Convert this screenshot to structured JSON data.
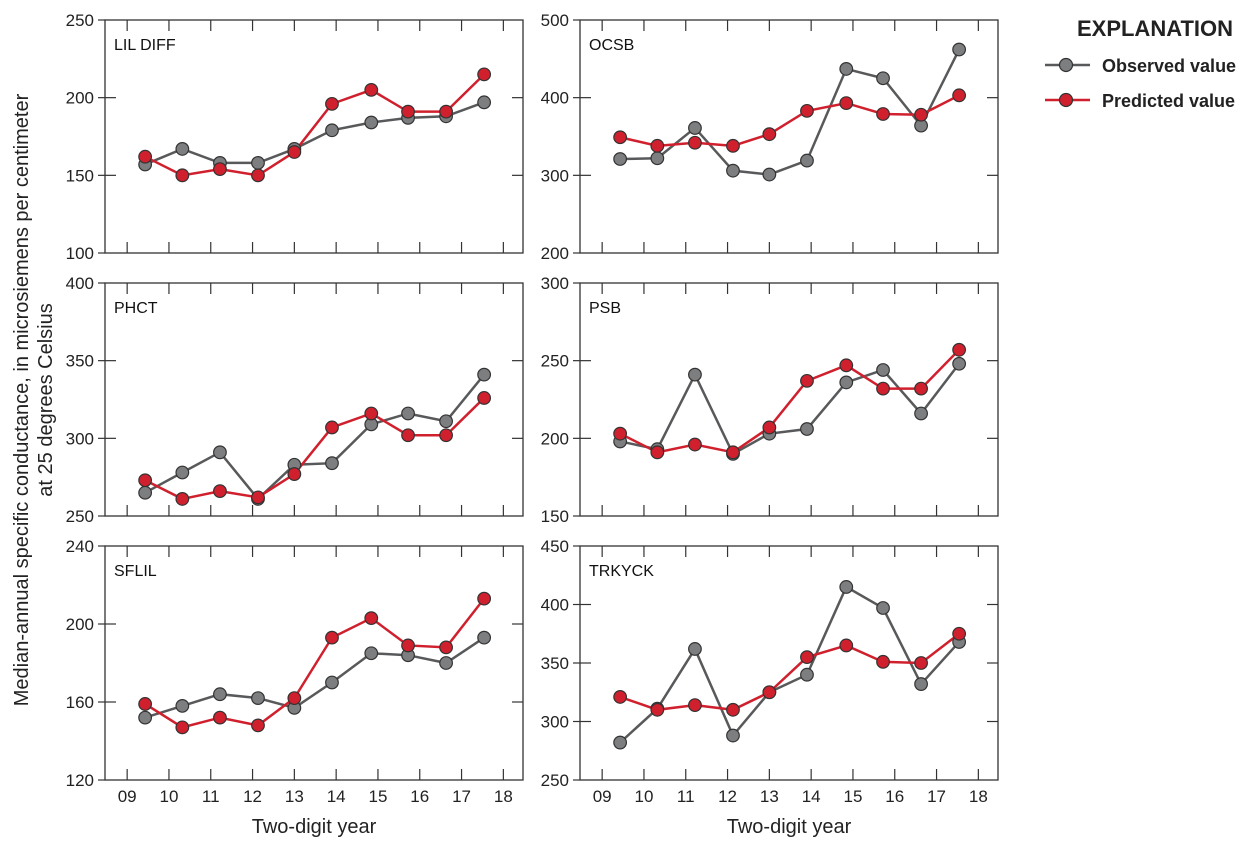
{
  "chart_data": {
    "type": "line",
    "ylabel": [
      "Median-annual specific conductance, in microsiemens per centimeter",
      "at 25 degrees Celsius"
    ],
    "xlabel": "Two-digit year",
    "x_ticks": [
      "09",
      "10",
      "11",
      "12",
      "13",
      "14",
      "15",
      "16",
      "17",
      "18"
    ],
    "x_values": [
      9.43,
      10.32,
      11.22,
      12.13,
      13.0,
      13.9,
      14.84,
      15.72,
      16.63,
      17.54
    ],
    "legend": {
      "title": "EXPLANATION",
      "placement": "top-right",
      "entries": [
        "Observed value",
        "Predicted value"
      ]
    },
    "colors": {
      "observed_fill": "#7d7e80",
      "observed_line": "#58595b",
      "predicted": "#d0202e"
    },
    "panels": [
      {
        "name": "LIL DIFF",
        "ylim": [
          100,
          250
        ],
        "yticks": [
          100,
          150,
          200,
          250
        ],
        "observed": [
          157,
          167,
          158,
          158,
          167,
          179,
          184,
          187,
          188,
          197
        ],
        "predicted": [
          162,
          150,
          154,
          150,
          165,
          196,
          205,
          191,
          191,
          215
        ]
      },
      {
        "name": "OCSB",
        "ylim": [
          200,
          500
        ],
        "yticks": [
          200,
          300,
          400,
          500
        ],
        "observed": [
          321,
          322,
          361,
          306,
          301,
          319,
          437,
          425,
          364,
          462
        ],
        "predicted": [
          349,
          338,
          342,
          338,
          353,
          383,
          393,
          379,
          378,
          403
        ]
      },
      {
        "name": "PHCT",
        "ylim": [
          250,
          400
        ],
        "yticks": [
          250,
          300,
          350,
          400
        ],
        "observed": [
          265,
          278,
          291,
          261,
          283,
          284,
          309,
          316,
          311,
          341
        ],
        "predicted": [
          273,
          261,
          266,
          262,
          277,
          307,
          316,
          302,
          302,
          326
        ]
      },
      {
        "name": "PSB",
        "ylim": [
          150,
          300
        ],
        "yticks": [
          150,
          200,
          250,
          300
        ],
        "observed": [
          198,
          193,
          241,
          190,
          203,
          206,
          236,
          244,
          216,
          248
        ],
        "predicted": [
          203,
          191,
          196,
          191,
          207,
          237,
          247,
          232,
          232,
          257
        ]
      },
      {
        "name": "SFLIL",
        "ylim": [
          120,
          240
        ],
        "yticks": [
          120,
          160,
          200,
          240
        ],
        "observed": [
          152,
          158,
          164,
          162,
          157,
          170,
          185,
          184,
          180,
          193
        ],
        "predicted": [
          159,
          147,
          152,
          148,
          162,
          193,
          203,
          189,
          188,
          213
        ]
      },
      {
        "name": "TRKYCK",
        "ylim": [
          250,
          450
        ],
        "yticks": [
          250,
          300,
          350,
          400,
          450
        ],
        "observed": [
          282,
          311,
          362,
          288,
          325,
          340,
          415,
          397,
          332,
          368
        ],
        "predicted": [
          321,
          310,
          314,
          310,
          325,
          355,
          365,
          351,
          350,
          375
        ]
      }
    ]
  }
}
